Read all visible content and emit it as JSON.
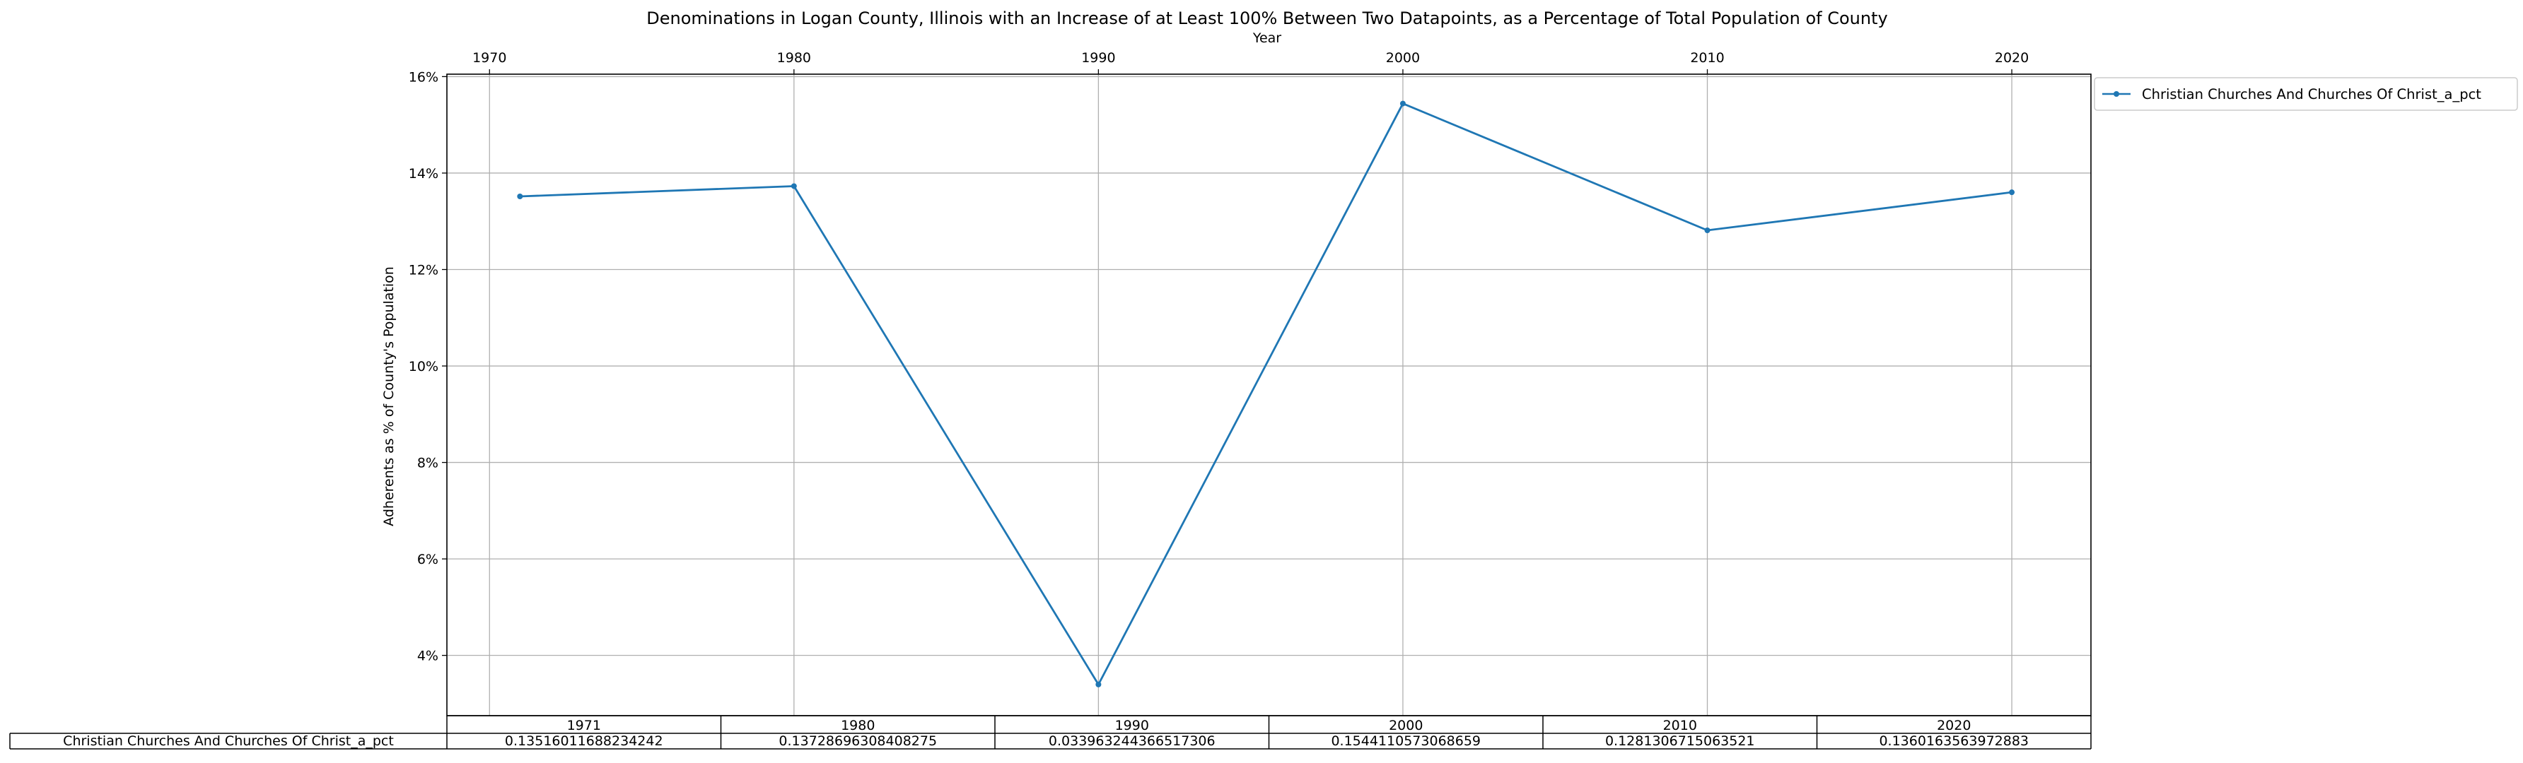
{
  "chart_data": {
    "type": "line",
    "title": "Denominations in Logan County, Illinois with an Increase of at Least 100% Between Two Datapoints, as a Percentage of Total Population of County",
    "xlabel": "Year",
    "ylabel": "Adherents as % of County's Population",
    "x": [
      1971,
      1980,
      1990,
      2000,
      2010,
      2020
    ],
    "xlim": [
      1968.6,
      2022.6
    ],
    "ylim": [
      0.0275,
      0.1605
    ],
    "x_ticks": [
      1970,
      1980,
      1990,
      2000,
      2010,
      2020
    ],
    "x_tick_labels": [
      "1970",
      "1980",
      "1990",
      "2000",
      "2010",
      "2020"
    ],
    "y_ticks": [
      0.04,
      0.06,
      0.08,
      0.1,
      0.12,
      0.14,
      0.16
    ],
    "y_tick_labels": [
      "4%",
      "6%",
      "8%",
      "10%",
      "12%",
      "14%",
      "16%"
    ],
    "x_axis_position": "top",
    "grid": true,
    "legend_position": "outside-top-right",
    "series": [
      {
        "name": "Christian Churches And Churches Of Christ_a_pct",
        "color": "#1f77b4",
        "marker": "dot",
        "values": [
          0.13516011688234242,
          0.13728696308408275,
          0.033963244366517306,
          0.154411057306865,
          0.1281306715063521,
          0.1360163563972883
        ]
      }
    ],
    "table": {
      "columns": [
        "1971",
        "1980",
        "1990",
        "2000",
        "2010",
        "2020"
      ],
      "rows": [
        {
          "label": "Christian Churches And Churches Of Christ_a_pct",
          "cells": [
            "0.13516011688234242",
            "0.13728696308408275",
            "0.033963244366517306",
            "0.1544110573068659",
            "0.1281306715063521",
            "0.1360163563972883"
          ]
        }
      ]
    }
  }
}
